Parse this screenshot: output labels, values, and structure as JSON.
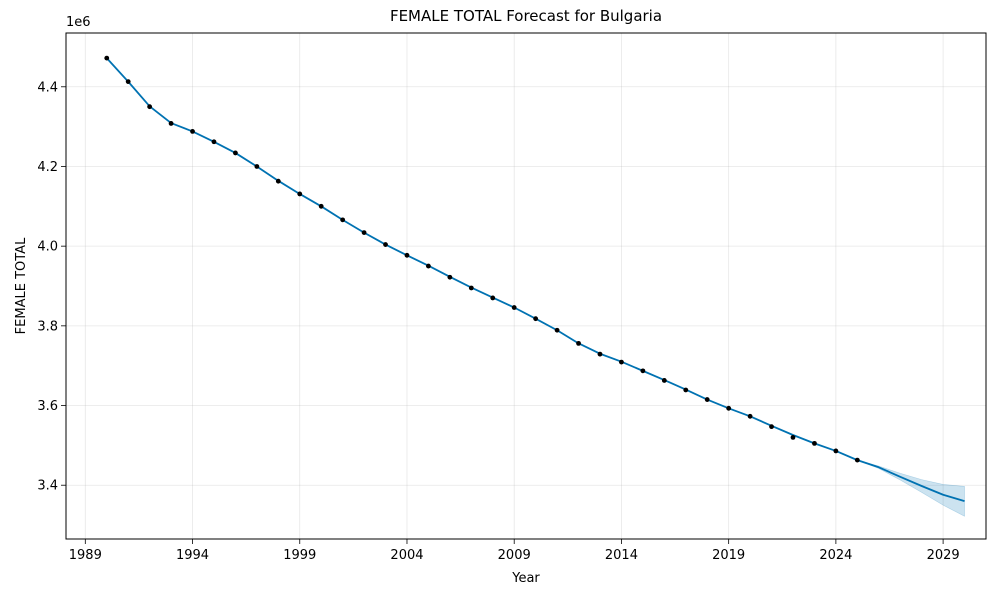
{
  "chart_data": {
    "type": "line",
    "title": "FEMALE TOTAL Forecast for Bulgaria",
    "xlabel": "Year",
    "ylabel": "FEMALE TOTAL",
    "y_offset_label": "1e6",
    "xlim": [
      1988.1,
      2031.0
    ],
    "ylim": [
      3265000,
      4535000
    ],
    "x_ticks": [
      1989,
      1994,
      1999,
      2004,
      2009,
      2014,
      2019,
      2024,
      2029
    ],
    "y_ticks": [
      3400000,
      3600000,
      3800000,
      4000000,
      4200000,
      4400000
    ],
    "y_tick_labels": [
      "3.4",
      "3.6",
      "3.8",
      "4.0",
      "4.2",
      "4.4"
    ],
    "grid": true,
    "colors": {
      "forecast": "#0072b2",
      "band": "#0072b2",
      "observed": "#000000"
    },
    "observed": {
      "x": [
        1990,
        1991,
        1992,
        1993,
        1994,
        1995,
        1996,
        1997,
        1998,
        1999,
        2000,
        2001,
        2002,
        2003,
        2004,
        2005,
        2006,
        2007,
        2008,
        2009,
        2010,
        2011,
        2012,
        2013,
        2014,
        2015,
        2016,
        2017,
        2018,
        2019,
        2020,
        2021,
        2022,
        2023,
        2024,
        2025
      ],
      "y": [
        4472000,
        4413000,
        4350000,
        4308000,
        4288000,
        4262000,
        4234000,
        4200000,
        4163000,
        4131000,
        4100000,
        4066000,
        4034000,
        4004000,
        3977000,
        3950000,
        3922000,
        3895000,
        3870000,
        3846000,
        3818000,
        3789000,
        3756000,
        3729000,
        3709000,
        3687000,
        3663000,
        3639000,
        3615000,
        3593000,
        3573000,
        3547000,
        3520000,
        3505000,
        3486000,
        3463000
      ]
    },
    "forecast": {
      "x": [
        1990,
        1991,
        1992,
        1993,
        1994,
        1995,
        1996,
        1997,
        1998,
        1999,
        2000,
        2001,
        2002,
        2003,
        2004,
        2005,
        2006,
        2007,
        2008,
        2009,
        2010,
        2011,
        2012,
        2013,
        2014,
        2015,
        2016,
        2017,
        2018,
        2019,
        2020,
        2021,
        2022,
        2023,
        2024,
        2025,
        2026,
        2027,
        2028,
        2029,
        2030
      ],
      "y": [
        4472000,
        4413000,
        4351000,
        4309000,
        4288000,
        4262000,
        4234000,
        4200000,
        4164000,
        4131000,
        4100000,
        4066000,
        4034000,
        4004000,
        3977000,
        3951000,
        3923000,
        3896000,
        3871000,
        3846000,
        3818000,
        3789000,
        3756000,
        3730000,
        3710000,
        3687000,
        3664000,
        3640000,
        3615000,
        3593000,
        3573000,
        3549000,
        3526000,
        3505000,
        3486000,
        3463000,
        3445000,
        3421000,
        3398000,
        3376000,
        3360000
      ],
      "lower": [
        4472000,
        4413000,
        4351000,
        4309000,
        4288000,
        4262000,
        4234000,
        4200000,
        4164000,
        4131000,
        4100000,
        4066000,
        4034000,
        4004000,
        3977000,
        3951000,
        3923000,
        3896000,
        3871000,
        3846000,
        3818000,
        3789000,
        3756000,
        3730000,
        3710000,
        3687000,
        3664000,
        3640000,
        3615000,
        3593000,
        3573000,
        3549000,
        3526000,
        3505000,
        3486000,
        3463000,
        3442000,
        3413000,
        3382000,
        3350000,
        3322000
      ],
      "upper": [
        4472000,
        4413000,
        4351000,
        4309000,
        4288000,
        4262000,
        4234000,
        4200000,
        4164000,
        4131000,
        4100000,
        4066000,
        4034000,
        4004000,
        3977000,
        3951000,
        3923000,
        3896000,
        3871000,
        3846000,
        3818000,
        3789000,
        3756000,
        3730000,
        3710000,
        3687000,
        3664000,
        3640000,
        3615000,
        3593000,
        3573000,
        3549000,
        3526000,
        3505000,
        3486000,
        3463000,
        3448000,
        3430000,
        3414000,
        3402000,
        3397000
      ]
    }
  }
}
